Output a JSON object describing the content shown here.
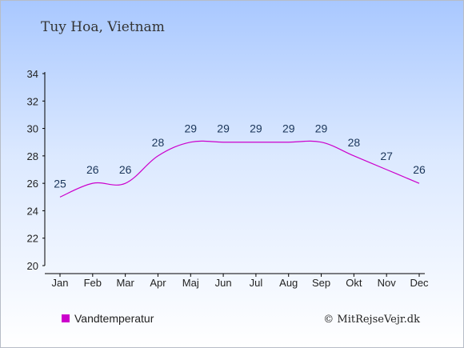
{
  "header": {
    "location": "Tuy Hoa, Vietnam"
  },
  "legend": {
    "label": "Vandtemperatur",
    "color": "#cc00cc"
  },
  "credit": {
    "text": "© MitRejseVejr.dk"
  },
  "chart_data": {
    "type": "line",
    "title": "Tuy Hoa, Vietnam",
    "categories": [
      "Jan",
      "Feb",
      "Mar",
      "Apr",
      "Maj",
      "Jun",
      "Jul",
      "Aug",
      "Sep",
      "Okt",
      "Nov",
      "Dec"
    ],
    "series": [
      {
        "name": "Vandtemperatur",
        "values": [
          25,
          26,
          26,
          28,
          29,
          29,
          29,
          29,
          29,
          28,
          27,
          26
        ],
        "color": "#cc00cc"
      }
    ],
    "ylim": [
      20,
      34
    ],
    "yticks": [
      20,
      22,
      24,
      26,
      28,
      30,
      32,
      34
    ],
    "xlabel": "",
    "ylabel": "",
    "grid": false,
    "legend_position": "bottom-left",
    "data_label_color": "#1a3559",
    "axis_color": "#000000"
  }
}
